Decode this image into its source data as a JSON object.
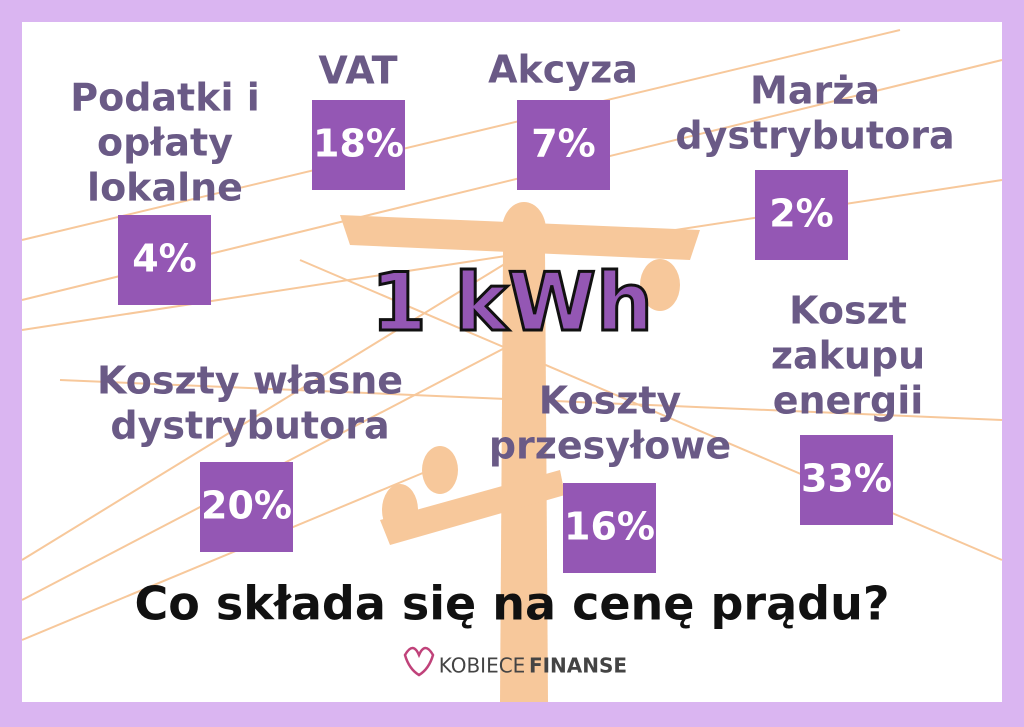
{
  "center_label": "1 kWh",
  "title": "Co składa się na cenę prądu?",
  "brand": {
    "first": "KOBIECE",
    "second": "FINANSE"
  },
  "items": [
    {
      "label": [
        "Podatki i",
        "opłaty",
        "lokalne"
      ],
      "value": "4%"
    },
    {
      "label": [
        "VAT"
      ],
      "value": "18%"
    },
    {
      "label": [
        "Akcyza"
      ],
      "value": "7%"
    },
    {
      "label": [
        "Marża",
        "dystrybutora"
      ],
      "value": "2%"
    },
    {
      "label": [
        "Koszty własne",
        "dystrybutora"
      ],
      "value": "20%"
    },
    {
      "label": [
        "Koszty",
        "przesyłowe"
      ],
      "value": "16%"
    },
    {
      "label": [
        "Koszt",
        "zakupu",
        "energii"
      ],
      "value": "33%"
    }
  ]
}
